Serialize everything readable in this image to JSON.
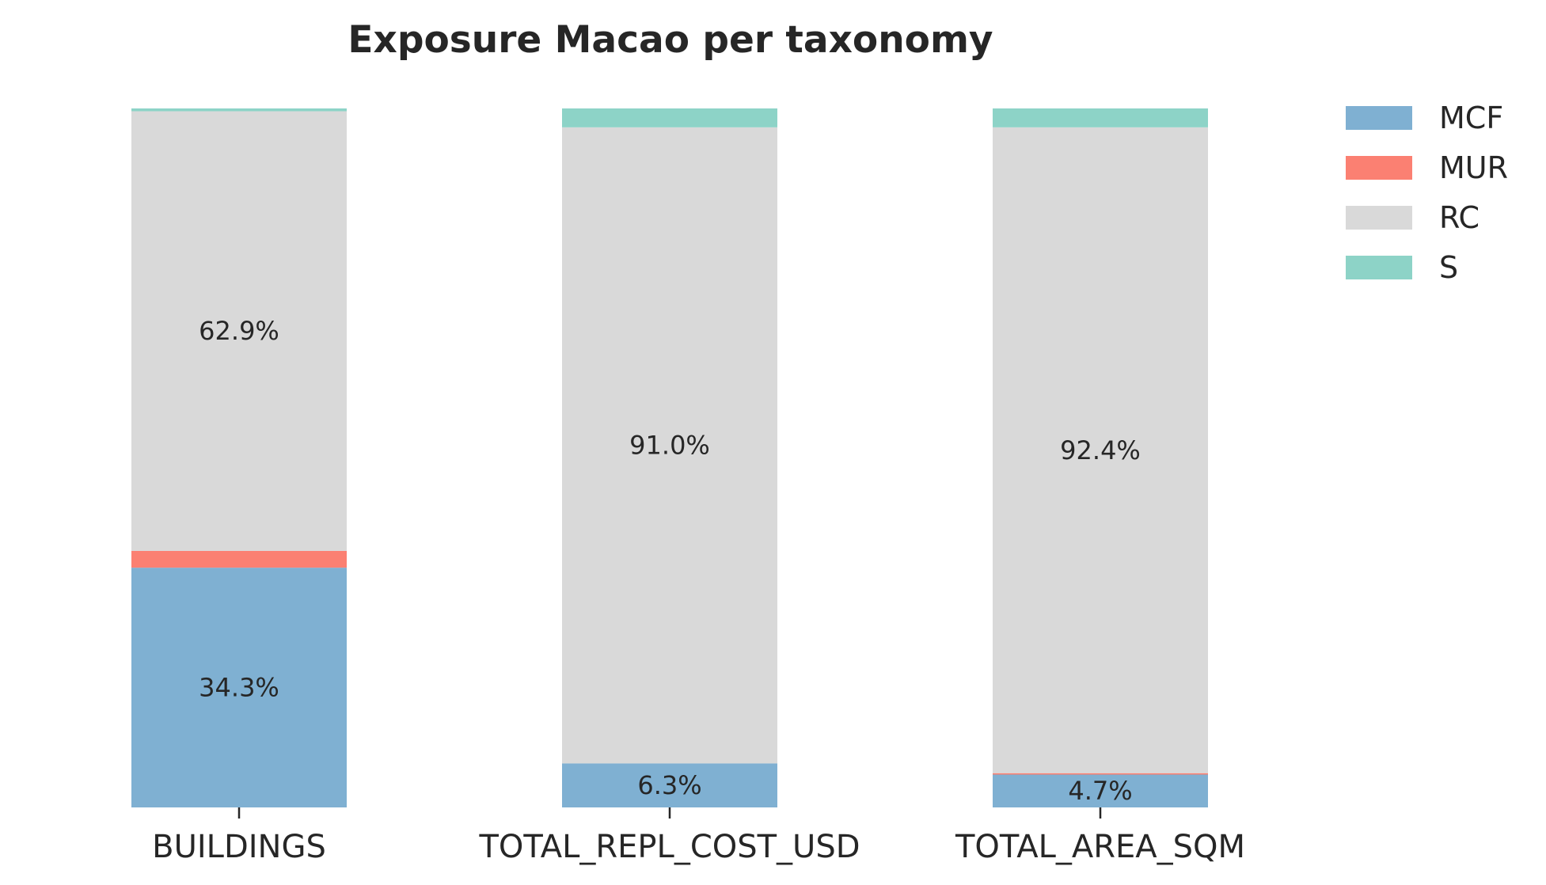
{
  "chart_data": {
    "type": "bar",
    "stacked": true,
    "percent": true,
    "title": "Exposure Macao per taxonomy",
    "xlabel": "",
    "ylabel": "",
    "ylim": [
      0,
      100
    ],
    "grid": false,
    "legend_position": "top-right",
    "categories": [
      "BUILDINGS",
      "TOTAL_REPL_COST_USD",
      "TOTAL_AREA_SQM"
    ],
    "series": [
      {
        "name": "MCF",
        "color": "#7fb0d2",
        "values": [
          34.3,
          6.3,
          4.7
        ]
      },
      {
        "name": "MUR",
        "color": "#fb8072",
        "values": [
          2.4,
          0.0,
          0.2
        ]
      },
      {
        "name": "RC",
        "color": "#d9d9d9",
        "values": [
          62.9,
          91.0,
          92.4
        ]
      },
      {
        "name": "S",
        "color": "#8dd3c7",
        "values": [
          0.4,
          2.7,
          2.7
        ]
      }
    ],
    "data_labels": [
      {
        "category": "BUILDINGS",
        "series": "MCF",
        "text": "34.3%"
      },
      {
        "category": "BUILDINGS",
        "series": "RC",
        "text": "62.9%"
      },
      {
        "category": "TOTAL_REPL_COST_USD",
        "series": "MCF",
        "text": "6.3%"
      },
      {
        "category": "TOTAL_REPL_COST_USD",
        "series": "RC",
        "text": "91.0%"
      },
      {
        "category": "TOTAL_AREA_SQM",
        "series": "MCF",
        "text": "4.7%"
      },
      {
        "category": "TOTAL_AREA_SQM",
        "series": "RC",
        "text": "92.4%"
      }
    ]
  }
}
